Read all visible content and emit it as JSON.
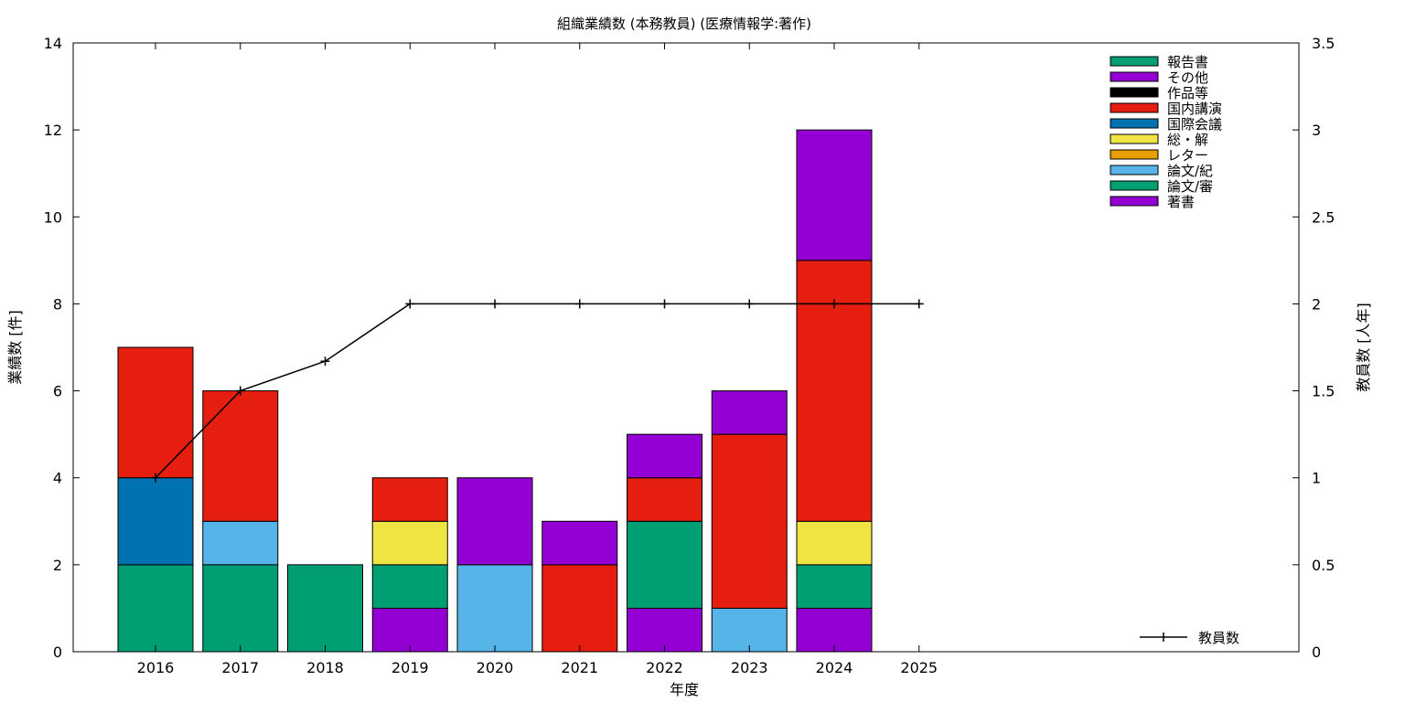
{
  "chart_data": {
    "type": "bar",
    "stacked": true,
    "title": "組織業績数 (本務教員) (医療情報学:著作)",
    "xlabel": "年度",
    "ylabel": "業績数 [件]",
    "y2label": "教員数 [人年]",
    "categories": [
      "2016",
      "2017",
      "2018",
      "2019",
      "2020",
      "2021",
      "2022",
      "2023",
      "2024",
      "2025"
    ],
    "ylim": [
      0,
      14
    ],
    "yticks": [
      0,
      2,
      4,
      6,
      8,
      10,
      12,
      14
    ],
    "y2lim": [
      0,
      3.5
    ],
    "y2ticks": [
      0,
      0.5,
      1,
      1.5,
      2,
      2.5,
      3,
      3.5
    ],
    "y2tick_labels": [
      "0",
      "0.5",
      "1",
      "1.5",
      "2",
      "2.5",
      "3",
      "3.5"
    ],
    "grid": false,
    "legend_position": "top-right",
    "series": [
      {
        "name": "著書",
        "color": "#9400d3",
        "values": [
          0,
          0,
          0,
          1,
          0,
          0,
          1,
          0,
          1,
          0
        ]
      },
      {
        "name": "論文/審",
        "color": "#009e73",
        "values": [
          2,
          2,
          2,
          1,
          0,
          0,
          2,
          0,
          1,
          0
        ]
      },
      {
        "name": "論文/紀",
        "color": "#56b4e9",
        "values": [
          0,
          1,
          0,
          0,
          2,
          0,
          0,
          1,
          0,
          0
        ]
      },
      {
        "name": "レター",
        "color": "#e69f00",
        "values": [
          0,
          0,
          0,
          0,
          0,
          0,
          0,
          0,
          0,
          0
        ]
      },
      {
        "name": "総・解",
        "color": "#f0e442",
        "values": [
          0,
          0,
          0,
          1,
          0,
          0,
          0,
          0,
          1,
          0
        ]
      },
      {
        "name": "国際会議",
        "color": "#0072b2",
        "values": [
          2,
          0,
          0,
          0,
          0,
          0,
          0,
          0,
          0,
          0
        ]
      },
      {
        "name": "国内講演",
        "color": "#e51e10",
        "values": [
          3,
          3,
          0,
          1,
          0,
          2,
          1,
          4,
          6,
          0
        ]
      },
      {
        "name": "作品等",
        "color": "#000000",
        "values": [
          0,
          0,
          0,
          0,
          0,
          0,
          0,
          0,
          0,
          0
        ]
      },
      {
        "name": "その他",
        "color": "#9400d3",
        "values": [
          0,
          0,
          0,
          0,
          2,
          1,
          1,
          1,
          3,
          0
        ]
      },
      {
        "name": "報告書",
        "color": "#009e73",
        "values": [
          0,
          0,
          0,
          0,
          0,
          0,
          0,
          0,
          0,
          0
        ]
      }
    ],
    "line_series": {
      "name": "教員数",
      "axis": "y2",
      "color": "#000000",
      "values": [
        1,
        1.5,
        1.67,
        2,
        2,
        2,
        2,
        2,
        2,
        2
      ]
    }
  }
}
